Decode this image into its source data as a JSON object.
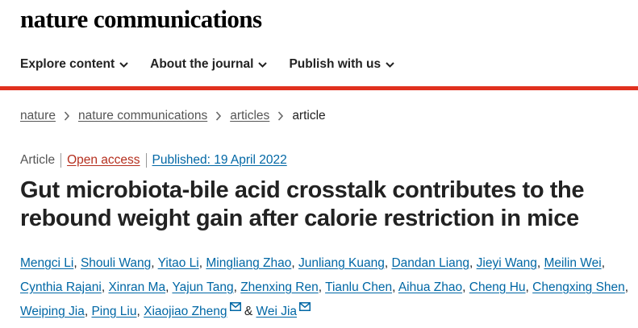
{
  "site": {
    "brand": "nature communications"
  },
  "nav": {
    "items": [
      {
        "label": "Explore content"
      },
      {
        "label": "About the journal"
      },
      {
        "label": "Publish with us"
      }
    ]
  },
  "breadcrumb": {
    "items": [
      "nature",
      "nature communications",
      "articles"
    ],
    "current": "article"
  },
  "article": {
    "type": "Article",
    "access": "Open access",
    "published": "Published: 19 April 2022",
    "title": "Gut microbiota-bile acid crosstalk contributes to the rebound weight gain after calorie restriction in mice",
    "authors": [
      "Mengci Li",
      "Shouli Wang",
      "Yitao Li",
      "Mingliang Zhao",
      "Junliang Kuang",
      "Dandan Liang",
      "Jieyi Wang",
      "Meilin Wei",
      "Cynthia Rajani",
      "Xinran Ma",
      "Yajun Tang",
      "Zhenxing Ren",
      "Tianlu Chen",
      "Aihua Zhao",
      "Cheng Hu",
      "Chengxing Shen",
      "Weiping Jia",
      "Ping Liu",
      "Xiaojiao Zheng",
      "Wei Jia"
    ],
    "ampersand": "&"
  },
  "colors": {
    "accent_bar": "#e0301e",
    "link": "#0067a5",
    "open_access": "#b52f1e"
  },
  "icons": {
    "nav_caret": "chevron-down-icon",
    "breadcrumb_separator": "chevron-right-icon",
    "author_contact": "envelope-icon"
  }
}
